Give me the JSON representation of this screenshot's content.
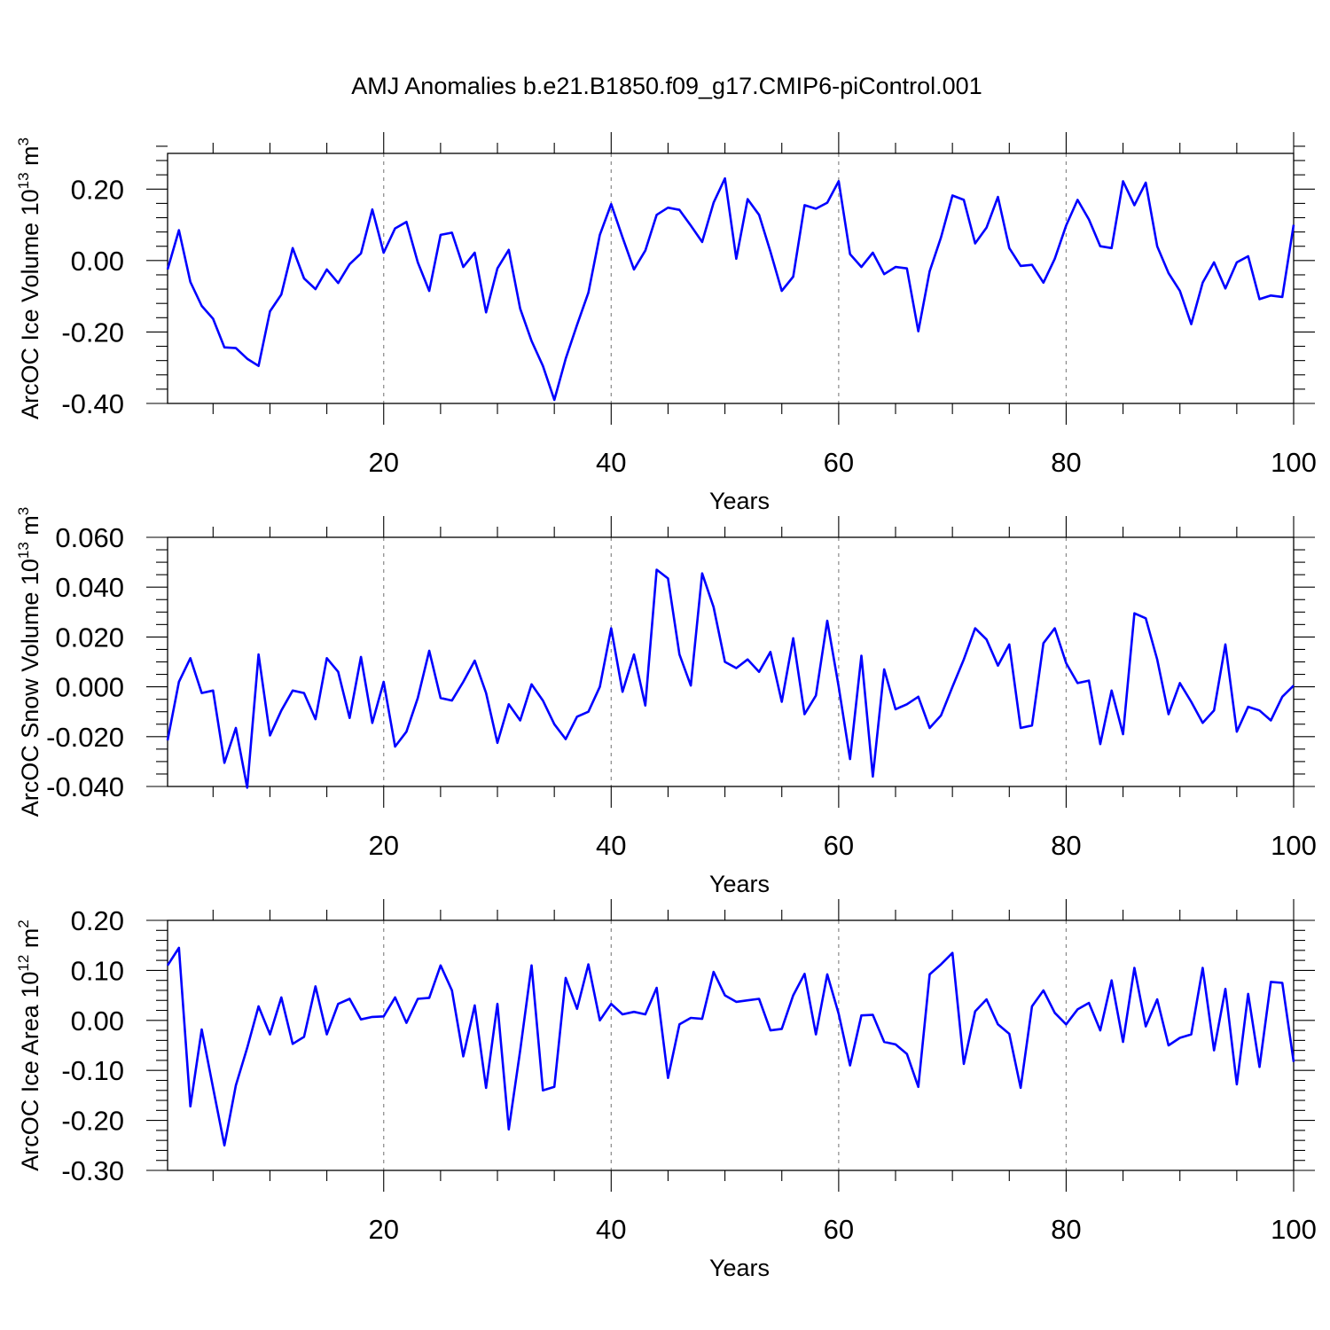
{
  "figure_title": "AMJ Anomalies b.e21.B1850.f09_g17.CMIP6-piControl.001",
  "line_color": "#0000ff",
  "chart_data": [
    {
      "type": "line",
      "title": "AMJ Anomalies b.e21.B1850.f09_g17.CMIP6-piControl.001",
      "xlabel": "Years",
      "ylabel": "ArcOC Ice Volume 10",
      "ylabel_exp": "13",
      "ylabel_unit": " m",
      "ylabel_unit_exp": "3",
      "xlim": [
        1,
        100
      ],
      "ylim": [
        -0.4,
        0.3
      ],
      "xticks": [
        20,
        40,
        60,
        80,
        100
      ],
      "xtick_labels": [
        "20",
        "40",
        "60",
        "80",
        "100"
      ],
      "yticks": [
        -0.4,
        -0.2,
        0.0,
        0.2
      ],
      "ytick_labels": [
        "-0.40",
        "-0.20",
        "0.00",
        "0.20"
      ],
      "y_minor_step": 0.04,
      "x_minor_step": 5,
      "gridlines_x": [
        20,
        40,
        60,
        80
      ],
      "series": [
        {
          "name": "Ice Volume",
          "x_start": 1,
          "values": [
            -0.025,
            0.085,
            -0.06,
            -0.127,
            -0.163,
            -0.243,
            -0.245,
            -0.275,
            -0.295,
            -0.142,
            -0.095,
            0.035,
            -0.05,
            -0.08,
            -0.025,
            -0.063,
            -0.01,
            0.02,
            0.143,
            0.022,
            0.09,
            0.108,
            -0.005,
            -0.085,
            0.072,
            0.078,
            -0.018,
            0.022,
            -0.145,
            -0.022,
            0.03,
            -0.135,
            -0.225,
            -0.295,
            -0.39,
            -0.275,
            -0.18,
            -0.09,
            0.072,
            0.158,
            0.065,
            -0.025,
            0.028,
            0.128,
            0.148,
            0.142,
            0.098,
            0.052,
            0.162,
            0.23,
            0.005,
            0.172,
            0.128,
            0.025,
            -0.085,
            -0.045,
            0.155,
            0.145,
            0.162,
            0.222,
            0.018,
            -0.018,
            0.022,
            -0.038,
            -0.018,
            -0.022,
            -0.198,
            -0.03,
            0.065,
            0.182,
            0.17,
            0.048,
            0.092,
            0.178,
            0.035,
            -0.015,
            -0.012,
            -0.062,
            0.005,
            0.098,
            0.17,
            0.115,
            0.04,
            0.035,
            0.222,
            0.155,
            0.218,
            0.04,
            -0.035,
            -0.085,
            -0.178,
            -0.062,
            -0.005,
            -0.078,
            -0.005,
            0.012,
            -0.108,
            -0.098,
            -0.102,
            0.1
          ]
        }
      ]
    },
    {
      "type": "line",
      "xlabel": "Years",
      "ylabel": "ArcOC Snow Volume 10",
      "ylabel_exp": "13",
      "ylabel_unit": " m",
      "ylabel_unit_exp": "3",
      "xlim": [
        1,
        100
      ],
      "ylim": [
        -0.04,
        0.06
      ],
      "xticks": [
        20,
        40,
        60,
        80,
        100
      ],
      "xtick_labels": [
        "20",
        "40",
        "60",
        "80",
        "100"
      ],
      "yticks": [
        -0.04,
        -0.02,
        0.0,
        0.02,
        0.04,
        0.06
      ],
      "ytick_labels": [
        "-0.040",
        "-0.020",
        "0.000",
        "0.020",
        "0.040",
        "0.060"
      ],
      "y_minor_step": 0.005,
      "x_minor_step": 5,
      "gridlines_x": [
        20,
        40,
        60,
        80
      ],
      "series": [
        {
          "name": "Snow Volume",
          "x_start": 1,
          "values": [
            -0.0215,
            0.002,
            0.0115,
            -0.0025,
            -0.0015,
            -0.0305,
            -0.0165,
            -0.0405,
            0.013,
            -0.0195,
            -0.0095,
            -0.0015,
            -0.0025,
            -0.013,
            0.0115,
            0.006,
            -0.0125,
            0.012,
            -0.0145,
            0.002,
            -0.024,
            -0.018,
            -0.0045,
            0.0145,
            -0.0045,
            -0.0055,
            0.002,
            0.0105,
            -0.0025,
            -0.0225,
            -0.007,
            -0.0135,
            0.001,
            -0.0055,
            -0.015,
            -0.021,
            -0.012,
            -0.01,
            0.0,
            0.0235,
            -0.002,
            0.013,
            -0.0075,
            0.047,
            0.0435,
            0.013,
            0.0005,
            0.0455,
            0.032,
            0.01,
            0.0075,
            0.011,
            0.006,
            0.014,
            -0.006,
            0.0195,
            -0.011,
            -0.0035,
            0.0265,
            0.0,
            -0.029,
            0.0125,
            -0.036,
            0.007,
            -0.009,
            -0.007,
            -0.004,
            -0.0165,
            -0.0115,
            0.0,
            0.011,
            0.0235,
            0.019,
            0.0085,
            0.017,
            -0.0165,
            -0.0155,
            0.0175,
            0.0235,
            0.0095,
            0.0015,
            0.0025,
            -0.023,
            -0.0015,
            -0.019,
            0.0295,
            0.0275,
            0.011,
            -0.011,
            0.0015,
            -0.006,
            -0.0145,
            -0.0095,
            0.017,
            -0.018,
            -0.008,
            -0.0095,
            -0.0135,
            -0.004,
            0.0005
          ]
        }
      ]
    },
    {
      "type": "line",
      "xlabel": "Years",
      "ylabel": "ArcOC Ice Area 10",
      "ylabel_exp": "12",
      "ylabel_unit": " m",
      "ylabel_unit_exp": "2",
      "xlim": [
        1,
        100
      ],
      "ylim": [
        -0.3,
        0.2
      ],
      "xticks": [
        20,
        40,
        60,
        80,
        100
      ],
      "xtick_labels": [
        "20",
        "40",
        "60",
        "80",
        "100"
      ],
      "yticks": [
        -0.3,
        -0.2,
        -0.1,
        0.0,
        0.1,
        0.2
      ],
      "ytick_labels": [
        "-0.30",
        "-0.20",
        "-0.10",
        "0.00",
        "0.10",
        "0.20"
      ],
      "y_minor_step": 0.02,
      "x_minor_step": 5,
      "gridlines_x": [
        20,
        40,
        60,
        80
      ],
      "series": [
        {
          "name": "Ice Area",
          "x_start": 1,
          "values": [
            0.11,
            0.145,
            -0.172,
            -0.018,
            -0.135,
            -0.25,
            -0.13,
            -0.055,
            0.028,
            -0.028,
            0.046,
            -0.047,
            -0.033,
            0.068,
            -0.028,
            0.033,
            0.043,
            0.002,
            0.007,
            0.008,
            0.046,
            -0.005,
            0.043,
            0.045,
            0.11,
            0.06,
            -0.072,
            0.03,
            -0.135,
            0.033,
            -0.218,
            -0.06,
            0.11,
            -0.14,
            -0.133,
            0.085,
            0.023,
            0.112,
            0.0,
            0.033,
            0.012,
            0.017,
            0.012,
            0.065,
            -0.115,
            -0.008,
            0.005,
            0.003,
            0.097,
            0.05,
            0.037,
            0.04,
            0.043,
            -0.02,
            -0.017,
            0.05,
            0.093,
            -0.028,
            0.092,
            0.013,
            -0.09,
            0.01,
            0.011,
            -0.043,
            -0.048,
            -0.067,
            -0.133,
            0.092,
            0.112,
            0.135,
            -0.087,
            0.018,
            0.042,
            -0.008,
            -0.027,
            -0.135,
            0.028,
            0.06,
            0.015,
            -0.008,
            0.022,
            0.035,
            -0.02,
            0.08,
            -0.043,
            0.105,
            -0.012,
            0.042,
            -0.05,
            -0.035,
            -0.028,
            0.105,
            -0.06,
            0.063,
            -0.128,
            0.053,
            -0.093,
            0.077,
            0.075,
            -0.083
          ]
        }
      ]
    }
  ]
}
